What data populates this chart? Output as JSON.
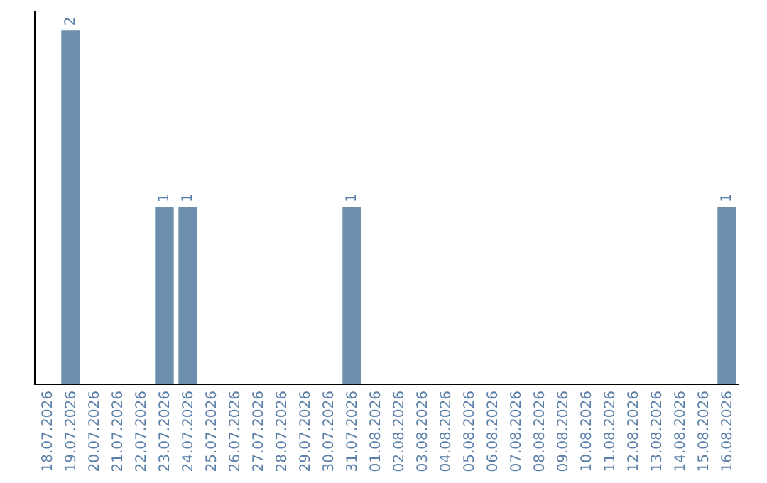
{
  "chart_data": {
    "type": "bar",
    "categories": [
      "18.07.2026",
      "19.07.2026",
      "20.07.2026",
      "21.07.2026",
      "22.07.2026",
      "23.07.2026",
      "24.07.2026",
      "25.07.2026",
      "26.07.2026",
      "27.07.2026",
      "28.07.2026",
      "29.07.2026",
      "30.07.2026",
      "31.07.2026",
      "01.08.2026",
      "02.08.2026",
      "03.08.2026",
      "04.08.2026",
      "05.08.2026",
      "06.08.2026",
      "07.08.2026",
      "08.08.2026",
      "09.08.2026",
      "10.08.2026",
      "11.08.2026",
      "12.08.2026",
      "13.08.2026",
      "14.08.2026",
      "15.08.2026",
      "16.08.2026"
    ],
    "values": [
      0,
      2,
      0,
      0,
      0,
      1,
      1,
      0,
      0,
      0,
      0,
      0,
      0,
      1,
      0,
      0,
      0,
      0,
      0,
      0,
      0,
      0,
      0,
      0,
      0,
      0,
      0,
      0,
      0,
      1
    ],
    "value_labels": [
      null,
      "2",
      null,
      null,
      null,
      "1",
      "1",
      null,
      null,
      null,
      null,
      null,
      null,
      "1",
      null,
      null,
      null,
      null,
      null,
      null,
      null,
      null,
      null,
      null,
      null,
      null,
      null,
      null,
      null,
      "1"
    ],
    "color": "#6d8fad",
    "grid": false,
    "legend": false
  }
}
